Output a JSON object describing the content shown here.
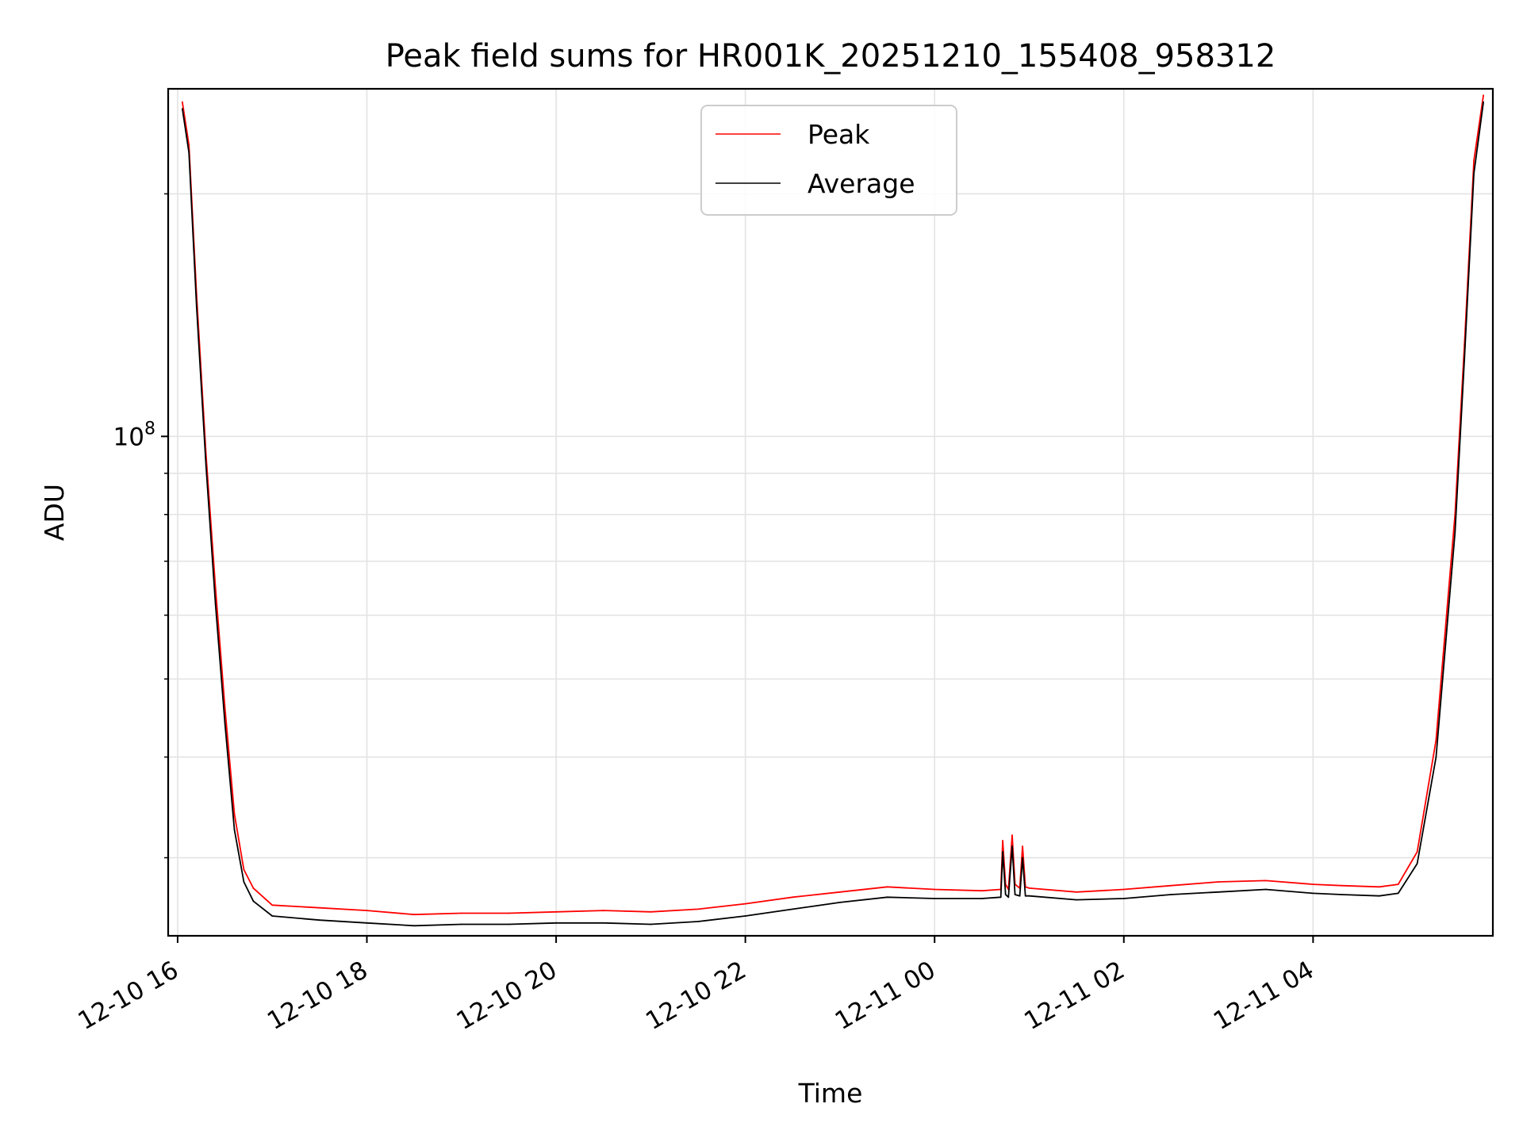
{
  "chart_data": {
    "type": "line",
    "title": "Peak field sums for HR001K_20251210_155408_958312",
    "xlabel": "Time",
    "ylabel": "ADU",
    "yscale": "log",
    "grid": true,
    "legend_position": "top-center",
    "x_unit": "hours since 12-10 16:00",
    "xlim": [
      -0.1,
      13.9
    ],
    "ylim": [
      24000000,
      270000000
    ],
    "x_ticks": [
      {
        "value": 0,
        "label": "12-10 16"
      },
      {
        "value": 2,
        "label": "12-10 18"
      },
      {
        "value": 4,
        "label": "12-10 20"
      },
      {
        "value": 6,
        "label": "12-10 22"
      },
      {
        "value": 8,
        "label": "12-11 00"
      },
      {
        "value": 10,
        "label": "12-11 02"
      },
      {
        "value": 12,
        "label": "12-11 04"
      }
    ],
    "y_major_ticks": [
      {
        "value": 100000000,
        "base": "10",
        "exponent": "8"
      }
    ],
    "y_minor_ticks": [
      30000000,
      40000000,
      50000000,
      60000000,
      70000000,
      80000000,
      90000000,
      200000000
    ],
    "series": [
      {
        "name": "Peak",
        "color": "#ff0000",
        "x": [
          0.05,
          0.12,
          0.2,
          0.3,
          0.4,
          0.5,
          0.6,
          0.7,
          0.8,
          1.0,
          1.5,
          2.0,
          2.5,
          3.0,
          3.5,
          4.0,
          4.5,
          5.0,
          5.5,
          6.0,
          6.5,
          7.0,
          7.5,
          8.0,
          8.5,
          8.7,
          8.72,
          8.75,
          8.78,
          8.82,
          8.85,
          8.9,
          8.93,
          8.96,
          9.0,
          9.5,
          10.0,
          10.5,
          11.0,
          11.5,
          12.0,
          12.3,
          12.7,
          12.9,
          13.1,
          13.3,
          13.5,
          13.6,
          13.7,
          13.8
        ],
        "values": [
          260000000,
          230000000,
          150000000,
          95000000,
          65000000,
          46000000,
          34000000,
          29000000,
          27500000,
          26200000,
          26000000,
          25800000,
          25500000,
          25600000,
          25600000,
          25700000,
          25800000,
          25700000,
          25900000,
          26300000,
          26800000,
          27200000,
          27600000,
          27400000,
          27300000,
          27400000,
          31500000,
          27800000,
          27400000,
          32000000,
          27800000,
          27500000,
          31000000,
          27600000,
          27500000,
          27200000,
          27400000,
          27700000,
          28000000,
          28100000,
          27800000,
          27700000,
          27600000,
          27800000,
          30500000,
          42000000,
          80000000,
          130000000,
          220000000,
          265000000
        ]
      },
      {
        "name": "Average",
        "color": "#000000",
        "x": [
          0.05,
          0.12,
          0.2,
          0.3,
          0.4,
          0.5,
          0.6,
          0.7,
          0.8,
          1.0,
          1.5,
          2.0,
          2.5,
          3.0,
          3.5,
          4.0,
          4.5,
          5.0,
          5.5,
          6.0,
          6.5,
          7.0,
          7.5,
          8.0,
          8.5,
          8.7,
          8.72,
          8.75,
          8.78,
          8.82,
          8.85,
          8.9,
          8.93,
          8.96,
          9.0,
          9.5,
          10.0,
          10.5,
          11.0,
          11.5,
          12.0,
          12.3,
          12.7,
          12.9,
          13.1,
          13.3,
          13.5,
          13.6,
          13.7,
          13.8
        ],
        "values": [
          255000000,
          225000000,
          145000000,
          92000000,
          62000000,
          44000000,
          32500000,
          28000000,
          26500000,
          25400000,
          25100000,
          24900000,
          24700000,
          24800000,
          24800000,
          24900000,
          24900000,
          24800000,
          25000000,
          25400000,
          25900000,
          26400000,
          26800000,
          26700000,
          26700000,
          26800000,
          30500000,
          27000000,
          26800000,
          31000000,
          27000000,
          26900000,
          30000000,
          26900000,
          26900000,
          26600000,
          26700000,
          27000000,
          27200000,
          27400000,
          27100000,
          27000000,
          26900000,
          27100000,
          29500000,
          40000000,
          76000000,
          125000000,
          212000000,
          260000000
        ]
      }
    ]
  }
}
